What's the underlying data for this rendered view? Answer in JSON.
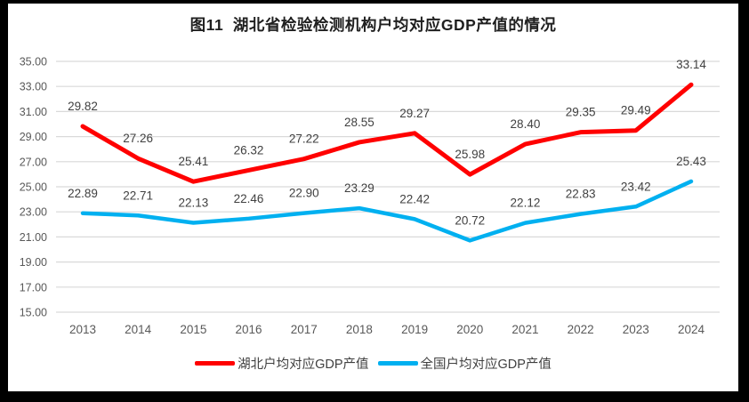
{
  "chart_data": {
    "type": "line",
    "title": "图11  湖北省检验检测机构户均对应GDP产值的情况",
    "categories": [
      "2013",
      "2014",
      "2015",
      "2016",
      "2017",
      "2018",
      "2019",
      "2020",
      "2021",
      "2022",
      "2023",
      "2024"
    ],
    "series": [
      {
        "name": "湖北户均对应GDP产值",
        "color": "#FF0000",
        "values": [
          29.82,
          27.26,
          25.41,
          26.32,
          27.22,
          28.55,
          29.27,
          25.98,
          28.4,
          29.35,
          29.49,
          33.14
        ]
      },
      {
        "name": "全国户均对应GDP产值",
        "color": "#00B0F0",
        "values": [
          22.89,
          22.71,
          22.13,
          22.46,
          22.9,
          23.29,
          22.42,
          20.72,
          22.12,
          22.83,
          23.42,
          25.43
        ]
      }
    ],
    "ylim": [
      15,
      35
    ],
    "ytick_labels": [
      "35.00",
      "33.00",
      "31.00",
      "29.00",
      "27.00",
      "25.00",
      "23.00",
      "21.00",
      "19.00",
      "17.00",
      "15.00"
    ],
    "grid": true,
    "data_labels": true,
    "legend_position": "bottom"
  },
  "style": {
    "grid_color": "#D9D9D9",
    "axis_text_color": "#595959",
    "data_label_color": "#404040",
    "title_color": "#1f1f1f",
    "frame_color": "#000000",
    "background": "#FFFFFF",
    "series_colors": [
      "#FF0000",
      "#00B0F0"
    ]
  }
}
